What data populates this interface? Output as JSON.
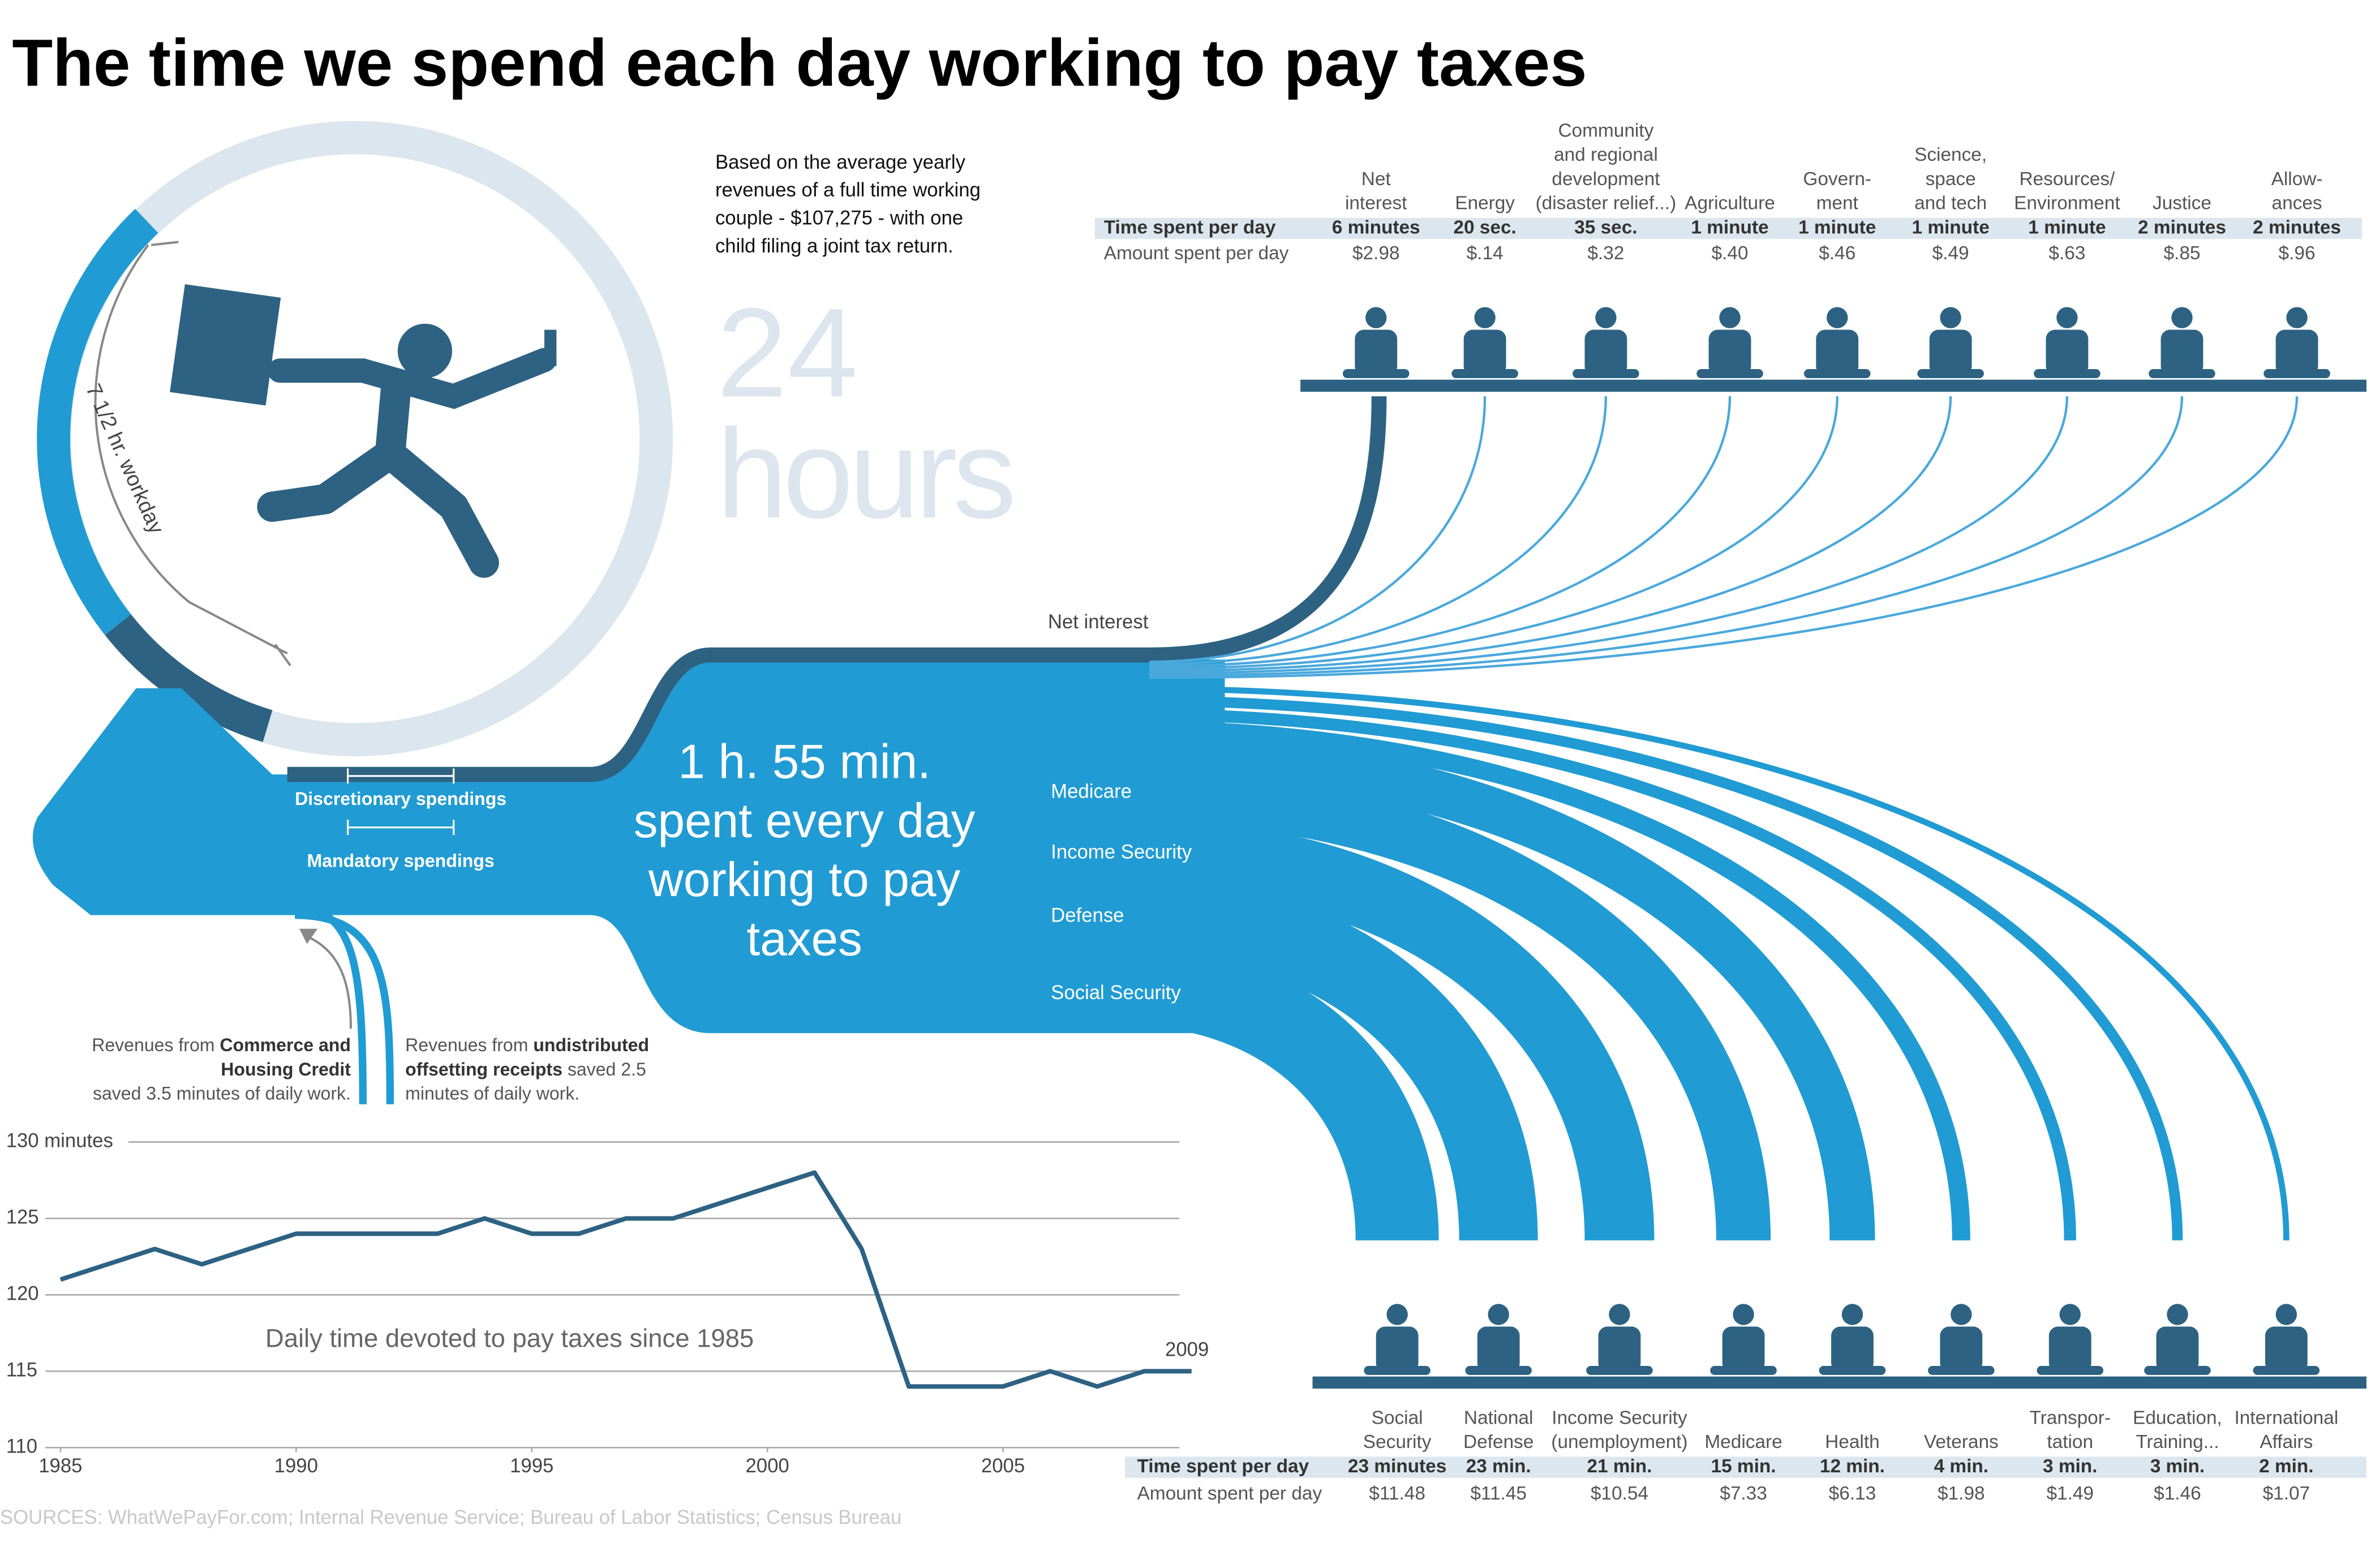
{
  "title": "The time we spend each day working to pay taxes",
  "clock": {
    "note": [
      "Based on the average yearly",
      "revenues of a full time working",
      "couple - $107,275 - with one",
      "child filing a joint tax return."
    ],
    "big": [
      "24",
      "hours"
    ],
    "workday": "7 1/2 hr. workday"
  },
  "flow": {
    "net_interest": "Net interest",
    "center": [
      "1 h. 55 min.",
      "spent every day",
      "working to pay",
      "taxes"
    ],
    "streams": [
      "Medicare",
      "Income Security",
      "Defense",
      "Social Security"
    ],
    "spend": [
      "Discretionary spendings",
      "Mandatory spendings"
    ],
    "notes": [
      [
        [
          {
            "text": "Revenues from "
          },
          {
            "text": "Commerce and",
            "bold": true
          }
        ],
        [
          {
            "text": "Housing Credit",
            "bold": true
          }
        ],
        [
          {
            "text": "saved 3.5 minutes of daily work."
          }
        ]
      ],
      [
        [
          {
            "text": "Revenues from "
          },
          {
            "text": "undistributed",
            "bold": true
          }
        ],
        [
          {
            "text": "offsetting receipts",
            "bold": true
          },
          {
            "text": " saved 2.5"
          }
        ],
        [
          {
            "text": "minutes of daily work."
          }
        ]
      ]
    ]
  },
  "top_table": {
    "row_labels": [
      "Time spent per day",
      "Amount spent per day"
    ],
    "items": [
      {
        "name": [
          "Net",
          "interest"
        ],
        "time": "6 minutes",
        "amount": "$2.98"
      },
      {
        "name": [
          "Energy"
        ],
        "time": "20 sec.",
        "amount": "$.14"
      },
      {
        "name": [
          "Community",
          "and regional",
          "development",
          "(disaster relief...)"
        ],
        "time": "35 sec.",
        "amount": "$.32"
      },
      {
        "name": [
          "Agriculture"
        ],
        "time": "1 minute",
        "amount": "$.40"
      },
      {
        "name": [
          "Govern-",
          "ment"
        ],
        "time": "1 minute",
        "amount": "$.46"
      },
      {
        "name": [
          "Science,",
          "space",
          "and tech"
        ],
        "time": "1 minute",
        "amount": "$.49"
      },
      {
        "name": [
          "Resources/",
          "Environment"
        ],
        "time": "1 minute",
        "amount": "$.63"
      },
      {
        "name": [
          "Justice"
        ],
        "time": "2 minutes",
        "amount": "$.85"
      },
      {
        "name": [
          "Allow-",
          "ances"
        ],
        "time": "2 minutes",
        "amount": "$.96"
      }
    ]
  },
  "bottom_table": {
    "row_labels": [
      "Time spent per day",
      "Amount spent per day"
    ],
    "items": [
      {
        "name": [
          "Social",
          "Security"
        ],
        "time": "23 minutes",
        "amount": "$11.48"
      },
      {
        "name": [
          "National",
          "Defense"
        ],
        "time": "23 min.",
        "amount": "$11.45"
      },
      {
        "name": [
          "Income Security",
          "(unemployment)"
        ],
        "time": "21 min.",
        "amount": "$10.54"
      },
      {
        "name": [
          "Medicare"
        ],
        "time": "15 min.",
        "amount": "$7.33"
      },
      {
        "name": [
          "Health"
        ],
        "time": "12 min.",
        "amount": "$6.13"
      },
      {
        "name": [
          "Veterans"
        ],
        "time": "4 min.",
        "amount": "$1.98"
      },
      {
        "name": [
          "Transpor-",
          "tation"
        ],
        "time": "3 min.",
        "amount": "$1.49"
      },
      {
        "name": [
          "Education,",
          "Training..."
        ],
        "time": "3 min.",
        "amount": "$1.46"
      },
      {
        "name": [
          "International",
          "Affairs"
        ],
        "time": "2 min.",
        "amount": "$1.07"
      }
    ]
  },
  "sources": "SOURCES: WhatWePayFor.com; Internal Revenue Service; Bureau of Labor Statistics; Census Bureau",
  "chart_data": {
    "type": "line",
    "title": "Daily time devoted to pay taxes since 1985",
    "annotation": "2009",
    "x": [
      1985,
      1986,
      1987,
      1988,
      1989,
      1990,
      1991,
      1992,
      1993,
      1994,
      1995,
      1996,
      1997,
      1998,
      1999,
      2000,
      2001,
      2002,
      2003,
      2004,
      2005,
      2006,
      2007,
      2008,
      2009
    ],
    "series": [
      {
        "name": "Daily time devoted to pay taxes",
        "color": "#2d6283",
        "values": [
          121,
          122,
          123,
          122,
          123,
          124,
          124,
          124,
          124,
          125,
          124,
          124,
          125,
          125,
          126,
          127,
          128,
          123,
          114,
          114,
          114,
          115,
          114,
          115,
          115
        ]
      }
    ],
    "xlim": [
      1985,
      2009
    ],
    "xticks": [
      1985,
      1990,
      1995,
      2000,
      2005
    ],
    "ylim": [
      110,
      130
    ],
    "yticks": [
      110,
      115,
      120,
      125,
      {
        "value": 130,
        "label": "130 minutes"
      }
    ],
    "grid": true
  }
}
